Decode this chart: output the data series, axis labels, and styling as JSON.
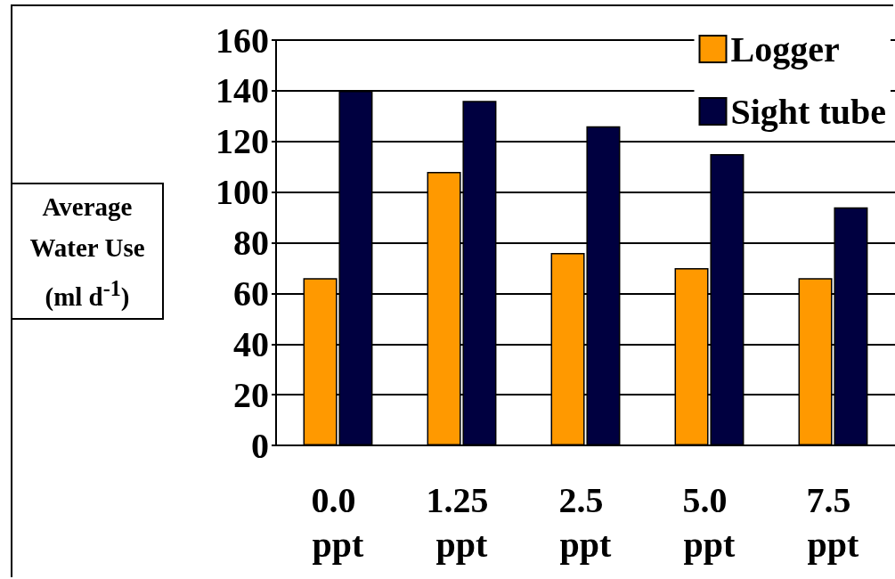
{
  "chart_data": {
    "type": "bar",
    "ylabel": "Average Water Use (ml d$^{-1}$)",
    "categories": [
      "0.0 ppt",
      "1.25 ppt",
      "2.5 ppt",
      "5.0 ppt",
      "7.5 ppt"
    ],
    "series": [
      {
        "name": "Logger",
        "color": "#ff9900",
        "values": [
          66,
          108,
          76,
          70,
          66
        ]
      },
      {
        "name": "Sight tube",
        "color": "#000040",
        "values": [
          140,
          136,
          126,
          115,
          94
        ]
      }
    ],
    "ylim": [
      0,
      160
    ],
    "yticks": [
      0,
      20,
      40,
      60,
      80,
      100,
      120,
      140,
      160
    ],
    "grid": "y",
    "legend": "top right"
  }
}
